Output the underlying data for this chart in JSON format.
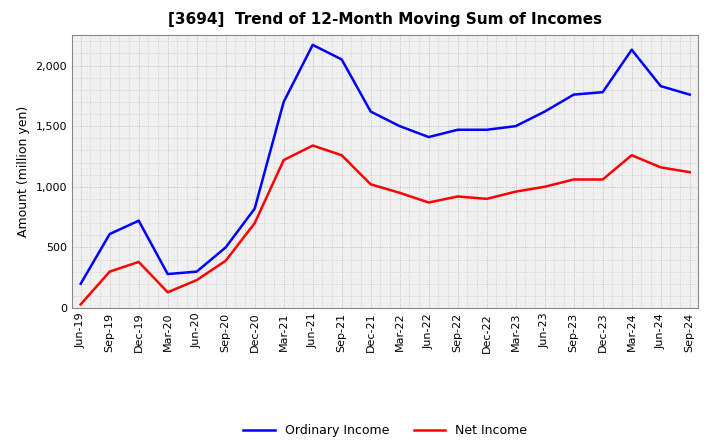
{
  "title": "[3694]  Trend of 12-Month Moving Sum of Incomes",
  "ylabel": "Amount (million yen)",
  "xlabels": [
    "Jun-19",
    "Sep-19",
    "Dec-19",
    "Mar-20",
    "Jun-20",
    "Sep-20",
    "Dec-20",
    "Mar-21",
    "Jun-21",
    "Sep-21",
    "Dec-21",
    "Mar-22",
    "Jun-22",
    "Sep-22",
    "Dec-22",
    "Mar-23",
    "Jun-23",
    "Sep-23",
    "Dec-23",
    "Mar-24",
    "Jun-24",
    "Sep-24"
  ],
  "ordinary_income": [
    200,
    610,
    720,
    280,
    300,
    500,
    820,
    1700,
    2170,
    2050,
    1620,
    1500,
    1410,
    1470,
    1470,
    1500,
    1620,
    1760,
    1780,
    2130,
    1830,
    1760
  ],
  "net_income": [
    30,
    300,
    380,
    130,
    230,
    390,
    700,
    1220,
    1340,
    1260,
    1020,
    950,
    870,
    920,
    900,
    960,
    1000,
    1060,
    1060,
    1260,
    1160,
    1120
  ],
  "ordinary_color": "#0000FF",
  "net_color": "#FF0000",
  "ylim": [
    0,
    2250
  ],
  "yticks": [
    0,
    500,
    1000,
    1500,
    2000
  ],
  "plot_bg_color": "#f0f0f0",
  "fig_bg_color": "#ffffff",
  "grid_color": "#888888",
  "legend_labels": [
    "Ordinary Income",
    "Net Income"
  ],
  "title_fontsize": 11,
  "ylabel_fontsize": 9,
  "tick_fontsize": 8,
  "legend_fontsize": 9,
  "line_width": 1.8
}
